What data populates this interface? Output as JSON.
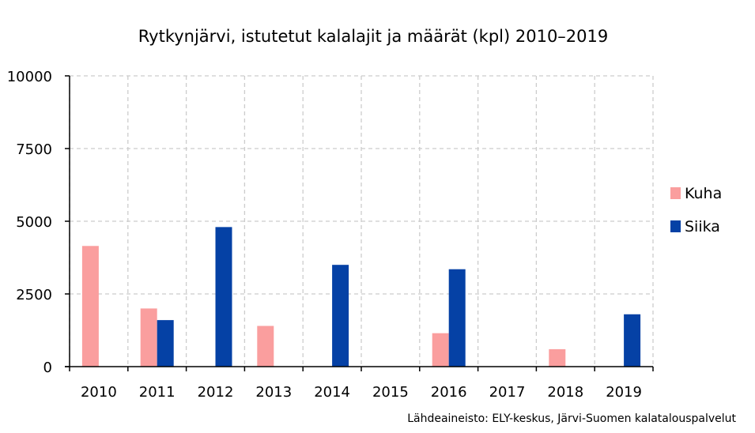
{
  "chart_data": {
    "type": "bar",
    "title": "Rytkynjärvi, istutetut kalalajit ja määrät (kpl) 2010–2019",
    "xlabel": "",
    "ylabel": "",
    "categories": [
      "2010",
      "2011",
      "2012",
      "2013",
      "2014",
      "2015",
      "2016",
      "2017",
      "2018",
      "2019"
    ],
    "series": [
      {
        "name": "Kuha",
        "color": "#FA9E9E",
        "values": [
          4150,
          2000,
          0,
          1400,
          0,
          0,
          1150,
          0,
          600,
          0
        ]
      },
      {
        "name": "Siika",
        "color": "#0541A5",
        "values": [
          0,
          1600,
          4800,
          0,
          3500,
          0,
          3350,
          0,
          0,
          1800
        ]
      }
    ],
    "ylim": [
      0,
      10000
    ],
    "yticks": [
      "0",
      "2500",
      "5000",
      "7500",
      "10000"
    ],
    "grid": true,
    "legend_position": "right"
  },
  "source_note": "Lähdeaineisto: ELY-keskus, Järvi-Suomen kalatalouspalvelut"
}
